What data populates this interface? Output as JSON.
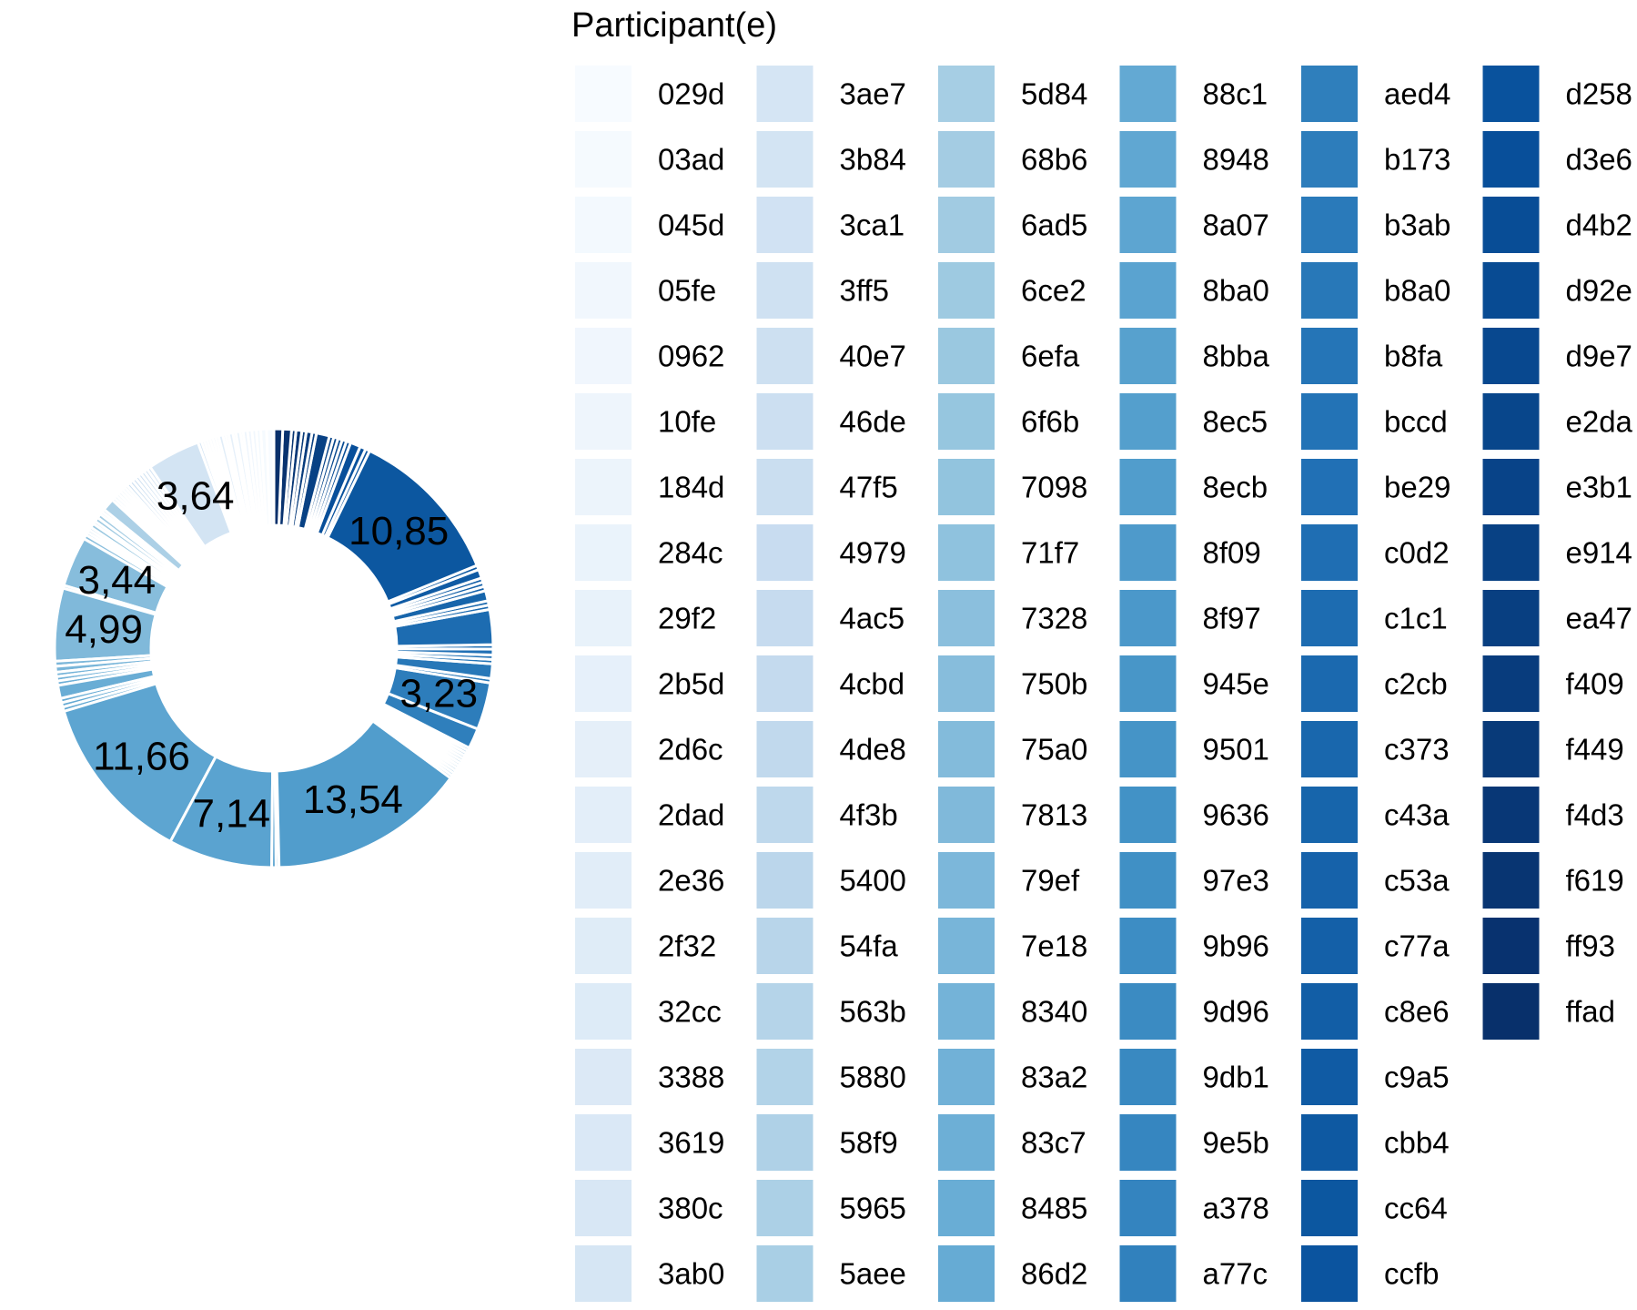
{
  "chart_data": {
    "type": "pie",
    "style": "donut",
    "palette": [
      "#f7fbff",
      "#deebf7",
      "#c6dbef",
      "#9ecae1",
      "#6baed6",
      "#4292c6",
      "#2171b5",
      "#08519c",
      "#08306b"
    ],
    "legend": {
      "title": "Participant(e)",
      "placement": "right",
      "columns": 6,
      "entries": [
        "029d",
        "03ad",
        "045d",
        "05fe",
        "0962",
        "10fe",
        "184d",
        "284c",
        "29f2",
        "2b5d",
        "2d6c",
        "2dad",
        "2e36",
        "2f32",
        "32cc",
        "3388",
        "3619",
        "380c",
        "3ab0",
        "3ae7",
        "3b84",
        "3ca1",
        "3ff5",
        "40e7",
        "46de",
        "47f5",
        "4979",
        "4ac5",
        "4cbd",
        "4de8",
        "4f3b",
        "5400",
        "54fa",
        "563b",
        "5880",
        "58f9",
        "5965",
        "5aee",
        "5d84",
        "68b6",
        "6ad5",
        "6ce2",
        "6efa",
        "6f6b",
        "7098",
        "71f7",
        "7328",
        "750b",
        "75a0",
        "7813",
        "79ef",
        "7e18",
        "8340",
        "83a2",
        "83c7",
        "8485",
        "86d2",
        "88c1",
        "8948",
        "8a07",
        "8ba0",
        "8bba",
        "8ec5",
        "8ecb",
        "8f09",
        "8f97",
        "945e",
        "9501",
        "9636",
        "97e3",
        "9b96",
        "9d96",
        "9db1",
        "9e5b",
        "a378",
        "a77c",
        "aed4",
        "b173",
        "b3ab",
        "b8a0",
        "b8fa",
        "bccd",
        "be29",
        "c0d2",
        "c1c1",
        "c2cb",
        "c373",
        "c43a",
        "c53a",
        "c77a",
        "c8e6",
        "c9a5",
        "cbb4",
        "cc64",
        "ccfb",
        "d258",
        "d3e6",
        "d4b2",
        "d92e",
        "d9e7",
        "e2da",
        "e3b1",
        "e914",
        "ea47",
        "f409",
        "f449",
        "f4d3",
        "f619",
        "ff93",
        "ffad"
      ]
    },
    "slices": [
      {
        "label": "029d",
        "value": 0.5
      },
      {
        "label": "03ad",
        "value": 0.4
      },
      {
        "label": "045d",
        "value": 0.3
      },
      {
        "label": "05fe",
        "value": 0.3
      },
      {
        "label": "0962",
        "value": 0.3
      },
      {
        "label": "10fe",
        "value": 0.3
      },
      {
        "label": "184d",
        "value": 0.2
      },
      {
        "label": "284c",
        "value": 0.3
      },
      {
        "label": "29f2",
        "value": 0.2
      },
      {
        "label": "2b5d",
        "value": 0.3
      },
      {
        "label": "2d6c",
        "value": 0.2
      },
      {
        "label": "2dad",
        "value": 0.2
      },
      {
        "label": "2e36",
        "value": 0.3
      },
      {
        "label": "2f32",
        "value": 0.2
      },
      {
        "label": "32cc",
        "value": 0.2
      },
      {
        "label": "3388",
        "value": 0.2
      },
      {
        "label": "3619",
        "value": 0.2
      },
      {
        "label": "380c",
        "value": 0.2
      },
      {
        "label": "3ab0",
        "value": 0.2
      },
      {
        "label": "3ae7",
        "value": 0.25
      },
      {
        "label": "3b84",
        "value": 3.64,
        "display": "3,64"
      },
      {
        "label": "3ca1",
        "value": 0.25
      },
      {
        "label": "3ff5",
        "value": 0.25
      },
      {
        "label": "40e7",
        "value": 0.25
      },
      {
        "label": "46de",
        "value": 0.25
      },
      {
        "label": "47f5",
        "value": 0.25
      },
      {
        "label": "4979",
        "value": 0.25
      },
      {
        "label": "4ac5",
        "value": 0.25
      },
      {
        "label": "4cbd",
        "value": 0.25
      },
      {
        "label": "4de8",
        "value": 0.2
      },
      {
        "label": "4f3b",
        "value": 0.2
      },
      {
        "label": "5400",
        "value": 0.2
      },
      {
        "label": "54fa",
        "value": 0.2
      },
      {
        "label": "563b",
        "value": 0.2
      },
      {
        "label": "5880",
        "value": 0.2
      },
      {
        "label": "58f9",
        "value": 0.2
      },
      {
        "label": "5965",
        "value": 0.85
      },
      {
        "label": "5aee",
        "value": 0.2
      },
      {
        "label": "5d84",
        "value": 0.2
      },
      {
        "label": "68b6",
        "value": 0.3
      },
      {
        "label": "6ad5",
        "value": 0.3
      },
      {
        "label": "6ce2",
        "value": 0.2
      },
      {
        "label": "6efa",
        "value": 0.3
      },
      {
        "label": "6f6b",
        "value": 0.2
      },
      {
        "label": "7098",
        "value": 0.2
      },
      {
        "label": "71f7",
        "value": 0.2
      },
      {
        "label": "7328",
        "value": 0.3
      },
      {
        "label": "750b",
        "value": 3.44,
        "display": "3,44"
      },
      {
        "label": "75a0",
        "value": 0.2
      },
      {
        "label": "7813",
        "value": 4.99,
        "display": "4,99"
      },
      {
        "label": "79ef",
        "value": 0.35
      },
      {
        "label": "7e18",
        "value": 0.4
      },
      {
        "label": "8340",
        "value": 0.3
      },
      {
        "label": "83a2",
        "value": 0.3
      },
      {
        "label": "83c7",
        "value": 0.3
      },
      {
        "label": "8485",
        "value": 0.9
      },
      {
        "label": "86d2",
        "value": 0.3
      },
      {
        "label": "88c1",
        "value": 0.3
      },
      {
        "label": "8948",
        "value": 0.3
      },
      {
        "label": "8a07",
        "value": 11.66,
        "display": "11,66"
      },
      {
        "label": "8ba0",
        "value": 7.14,
        "display": "7,14"
      },
      {
        "label": "8bba",
        "value": 0.3
      },
      {
        "label": "8ec5",
        "value": 0.2
      },
      {
        "label": "8ecb",
        "value": 13.54,
        "display": "13,54"
      },
      {
        "label": "8f09",
        "value": 0.2
      },
      {
        "label": "8f97",
        "value": 0.2
      },
      {
        "label": "945e",
        "value": 0.2
      },
      {
        "label": "9501",
        "value": 0.2
      },
      {
        "label": "9636",
        "value": 0.2
      },
      {
        "label": "97e3",
        "value": 0.2
      },
      {
        "label": "9b96",
        "value": 0.2
      },
      {
        "label": "9d96",
        "value": 0.2
      },
      {
        "label": "9db1",
        "value": 0.2
      },
      {
        "label": "9e5b",
        "value": 0.2
      },
      {
        "label": "a378",
        "value": 0.2
      },
      {
        "label": "a77c",
        "value": 0.2
      },
      {
        "label": "aed4",
        "value": 1.4
      },
      {
        "label": "b173",
        "value": 3.23,
        "display": "3,23"
      },
      {
        "label": "b3ab",
        "value": 0.3
      },
      {
        "label": "b8a0",
        "value": 1.0
      },
      {
        "label": "b8fa",
        "value": 0.3
      },
      {
        "label": "bccd",
        "value": 0.3
      },
      {
        "label": "be29",
        "value": 0.4
      },
      {
        "label": "c0d2",
        "value": 0.3
      },
      {
        "label": "c1c1",
        "value": 2.4
      },
      {
        "label": "c2cb",
        "value": 0.3
      },
      {
        "label": "c373",
        "value": 0.3
      },
      {
        "label": "c43a",
        "value": 0.7
      },
      {
        "label": "c53a",
        "value": 0.3
      },
      {
        "label": "c77a",
        "value": 0.3
      },
      {
        "label": "c8e6",
        "value": 0.3
      },
      {
        "label": "c9a5",
        "value": 0.6
      },
      {
        "label": "cbb4",
        "value": 0.3
      },
      {
        "label": "cc64",
        "value": 10.85,
        "display": "10,85"
      },
      {
        "label": "ccfb",
        "value": 0.3
      },
      {
        "label": "d258",
        "value": 0.4
      },
      {
        "label": "d3e6",
        "value": 0.7
      },
      {
        "label": "d4b2",
        "value": 0.3
      },
      {
        "label": "d92e",
        "value": 0.3
      },
      {
        "label": "d9e7",
        "value": 0.3
      },
      {
        "label": "e2da",
        "value": 0.3
      },
      {
        "label": "e3b1",
        "value": 0.3
      },
      {
        "label": "e914",
        "value": 0.9
      },
      {
        "label": "ea47",
        "value": 0.3
      },
      {
        "label": "f409",
        "value": 0.4
      },
      {
        "label": "f449",
        "value": 0.3
      },
      {
        "label": "f4d3",
        "value": 0.4
      },
      {
        "label": "f619",
        "value": 0.3
      },
      {
        "label": "ff93",
        "value": 0.6
      },
      {
        "label": "ffad",
        "value": 0.6
      }
    ]
  }
}
